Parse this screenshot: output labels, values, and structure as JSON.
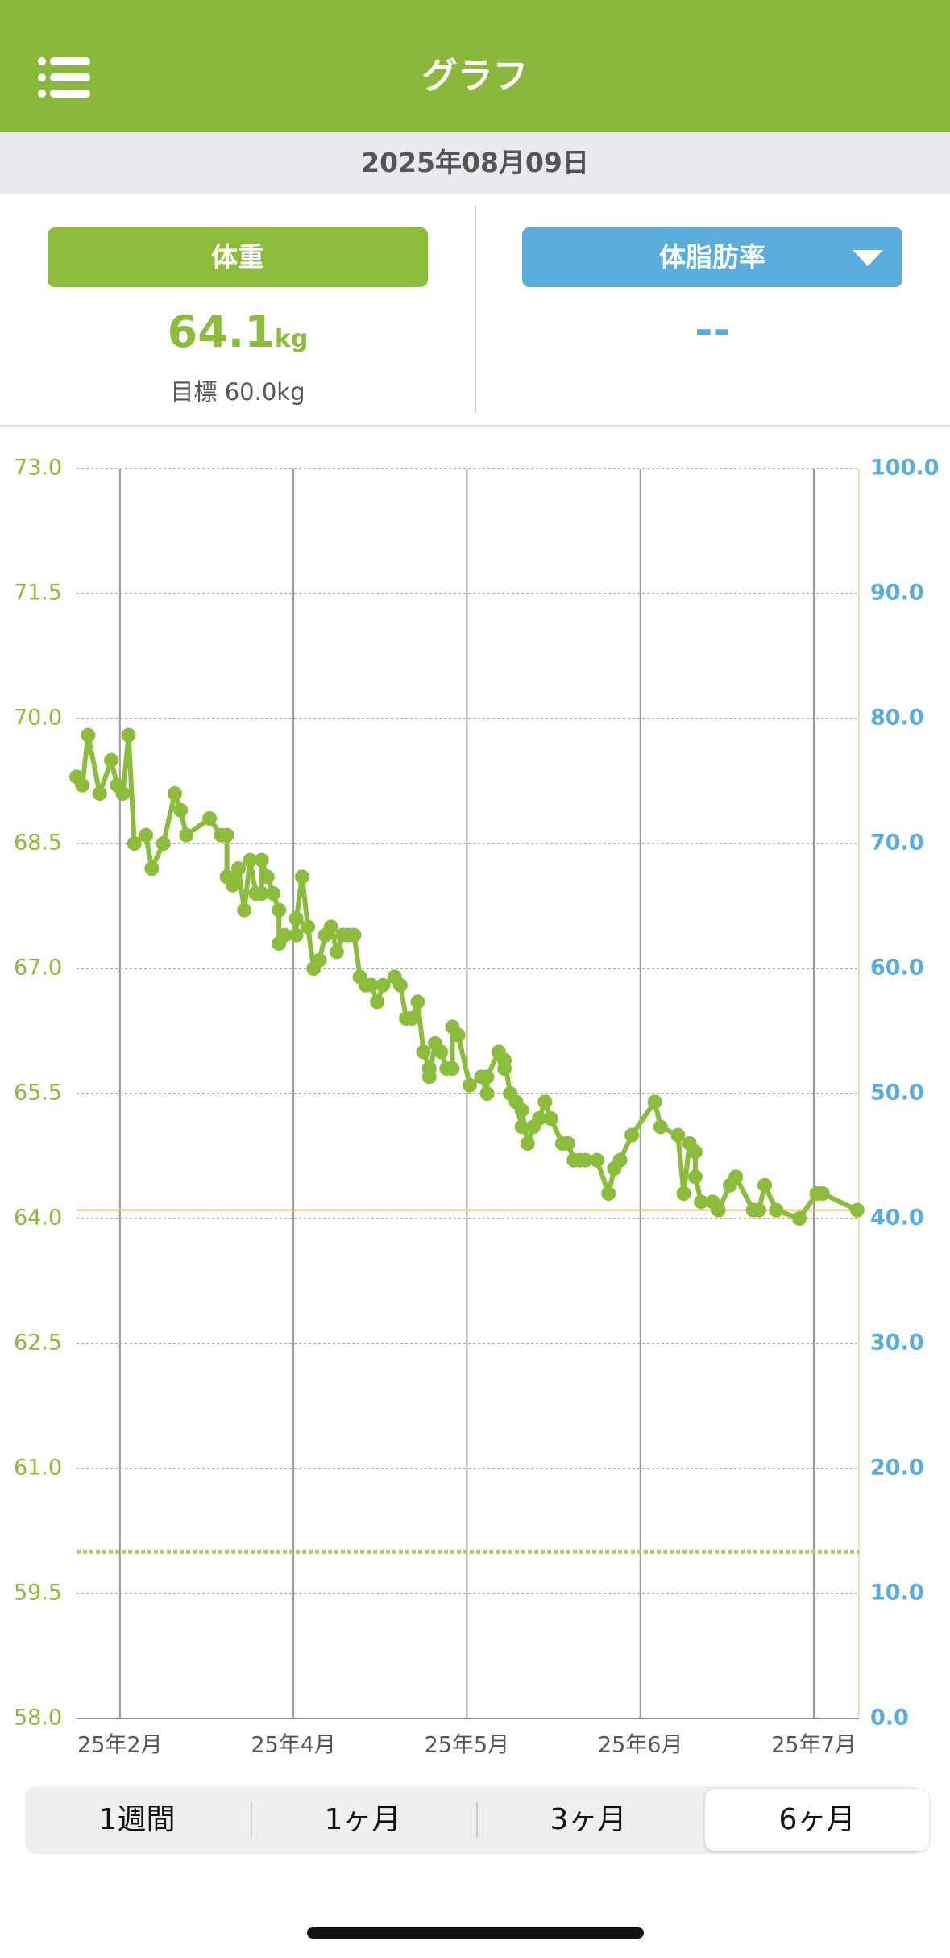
{
  "header": {
    "title": "グラフ"
  },
  "date": "2025年08月09日",
  "weight": {
    "label": "体重",
    "value": "64.1",
    "unit": "kg",
    "goal": "目標 60.0kg"
  },
  "body_fat": {
    "label": "体脂肪率",
    "value": "--"
  },
  "tabs": {
    "items": [
      "1週間",
      "1ヶ月",
      "3ヶ月",
      "6ヶ月"
    ],
    "selected": 3
  },
  "chart_data": {
    "type": "line",
    "x": [
      0,
      1,
      2,
      4,
      6,
      7,
      8,
      9,
      10,
      12,
      13,
      15,
      17,
      18,
      19,
      23,
      25,
      26,
      26,
      27,
      28,
      29,
      30,
      31,
      32,
      32,
      33,
      34,
      35,
      35,
      36,
      38,
      38,
      39,
      40,
      41,
      42,
      43,
      44,
      45,
      46,
      47,
      48,
      49,
      50,
      51,
      52,
      53,
      55,
      56,
      57,
      58,
      59,
      60,
      61,
      61,
      62,
      63,
      64,
      65,
      65,
      66,
      68,
      70,
      71,
      71,
      73,
      74,
      74,
      75,
      76,
      77,
      77,
      78,
      79,
      80,
      81,
      82,
      84,
      85,
      86,
      87,
      88,
      90,
      92,
      93,
      94,
      96,
      100,
      101,
      104,
      105,
      106,
      107,
      107,
      108,
      110,
      111,
      113,
      114,
      117,
      118,
      119,
      121,
      125,
      128,
      129,
      135
    ],
    "series": [
      {
        "name": "体重",
        "color": "#8cbc3c",
        "values": [
          69.3,
          69.2,
          69.8,
          69.1,
          69.5,
          69.2,
          69.1,
          69.8,
          68.5,
          68.6,
          68.2,
          68.5,
          69.1,
          68.9,
          68.6,
          68.8,
          68.6,
          68.6,
          68.1,
          68.0,
          68.2,
          67.7,
          68.3,
          67.9,
          67.9,
          68.3,
          68.1,
          67.9,
          67.7,
          67.3,
          67.4,
          67.4,
          67.6,
          68.1,
          67.5,
          67.0,
          67.1,
          67.4,
          67.5,
          67.2,
          67.4,
          67.4,
          67.4,
          66.9,
          66.8,
          66.8,
          66.6,
          66.8,
          66.9,
          66.8,
          66.4,
          66.4,
          66.6,
          66.0,
          65.8,
          65.7,
          66.1,
          66.0,
          65.8,
          65.8,
          66.3,
          66.2,
          65.6,
          65.7,
          65.5,
          65.7,
          66.0,
          65.8,
          65.9,
          65.5,
          65.4,
          65.1,
          65.3,
          64.9,
          65.1,
          65.2,
          65.4,
          65.2,
          64.9,
          64.9,
          64.7,
          64.7,
          64.7,
          64.7,
          64.3,
          64.6,
          64.7,
          65.0,
          65.4,
          65.1,
          65.0,
          64.3,
          64.9,
          64.8,
          64.5,
          64.2,
          64.2,
          64.1,
          64.4,
          64.5,
          64.1,
          64.1,
          64.4,
          64.1,
          64.0,
          64.3,
          64.3,
          64.1
        ]
      }
    ],
    "xlim": [
      0,
      135.3
    ],
    "xticks": [
      {
        "value": 7.5,
        "label": "25年2月"
      },
      {
        "value": 37.5,
        "label": "25年4月"
      },
      {
        "value": 67.5,
        "label": "25年5月"
      },
      {
        "value": 97.5,
        "label": "25年6月"
      },
      {
        "value": 127.5,
        "label": "25年7月"
      }
    ],
    "ylim": [
      58,
      73
    ],
    "yticks": [
      {
        "value": 58,
        "label": "58.0"
      },
      {
        "value": 59.5,
        "label": "59.5"
      },
      {
        "value": 61,
        "label": "61.0"
      },
      {
        "value": 62.5,
        "label": "62.5"
      },
      {
        "value": 64,
        "label": "64.0"
      },
      {
        "value": 65.5,
        "label": "65.5"
      },
      {
        "value": 67,
        "label": "67.0"
      },
      {
        "value": 68.5,
        "label": "68.5"
      },
      {
        "value": 70,
        "label": "70.0"
      },
      {
        "value": 71.5,
        "label": "71.5"
      },
      {
        "value": 73,
        "label": "73.0"
      }
    ],
    "y_color": "#8cb83c",
    "y2lim": [
      0,
      100
    ],
    "y2ticks": [
      {
        "value": 0,
        "label": "0.0"
      },
      {
        "value": 10,
        "label": "10.0"
      },
      {
        "value": 20,
        "label": "20.0"
      },
      {
        "value": 30,
        "label": "30.0"
      },
      {
        "value": 40,
        "label": "40.0"
      },
      {
        "value": 50,
        "label": "50.0"
      },
      {
        "value": 60,
        "label": "60.0"
      },
      {
        "value": 70,
        "label": "70.0"
      },
      {
        "value": 80,
        "label": "80.0"
      },
      {
        "value": 90,
        "label": "90.0"
      },
      {
        "value": 100,
        "label": "100.0"
      }
    ],
    "y2_color": "#5aacdc",
    "grid": true,
    "reference_lines": [
      {
        "value": 60,
        "color": "#a8d46a",
        "style": "dashed"
      },
      {
        "value": 64.1,
        "color": "#f5b67a",
        "style": "solid"
      }
    ]
  }
}
